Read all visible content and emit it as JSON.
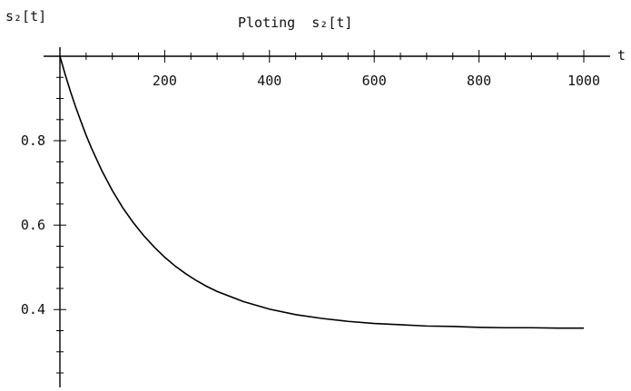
{
  "chart_data": {
    "type": "line",
    "title": "Ploting  s₂[t]",
    "xlabel": "t",
    "ylabel": "s₂[t]",
    "xlim": [
      0,
      1000
    ],
    "ylim": [
      0.22,
      1.0
    ],
    "x_major_ticks": [
      200,
      400,
      600,
      800,
      1000
    ],
    "x_tick_labels": [
      "200",
      "400",
      "600",
      "800",
      "1000"
    ],
    "y_major_ticks": [
      0.4,
      0.6,
      0.8
    ],
    "y_tick_labels": [
      "0.4",
      "0.6",
      "0.8"
    ],
    "grid": false,
    "series": [
      {
        "x": [
          0,
          10,
          20,
          30,
          40,
          50,
          60,
          80,
          100,
          120,
          140,
          160,
          180,
          200,
          220,
          240,
          260,
          280,
          300,
          350,
          400,
          450,
          500,
          550,
          600,
          650,
          700,
          750,
          800,
          850,
          900,
          950,
          1000
        ],
        "y": [
          1.0,
          0.957,
          0.917,
          0.88,
          0.846,
          0.813,
          0.783,
          0.729,
          0.682,
          0.641,
          0.606,
          0.575,
          0.548,
          0.524,
          0.503,
          0.485,
          0.469,
          0.455,
          0.443,
          0.419,
          0.401,
          0.388,
          0.379,
          0.372,
          0.367,
          0.364,
          0.361,
          0.36,
          0.358,
          0.357,
          0.357,
          0.356,
          0.356
        ],
        "color": "#000000"
      }
    ]
  }
}
